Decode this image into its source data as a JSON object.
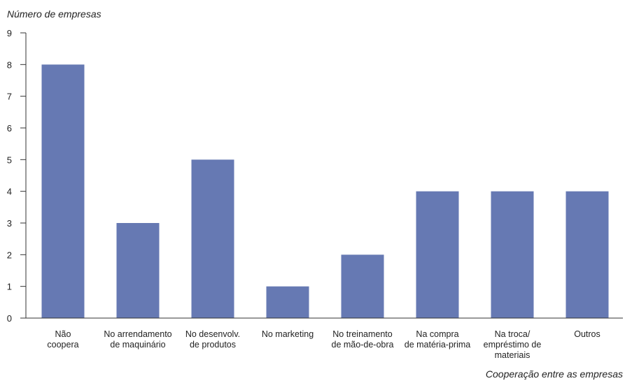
{
  "chart_data": {
    "type": "bar",
    "ylabel": "Número de empresas",
    "xlabel": "Cooperação entre as empresas",
    "ylim": [
      0,
      9
    ],
    "yticks": [
      0,
      1,
      2,
      3,
      4,
      5,
      6,
      7,
      8,
      9
    ],
    "grid": false,
    "categories": [
      [
        "Não",
        "coopera"
      ],
      [
        "No arrendamento",
        "de maquinário"
      ],
      [
        "No desenvolv.",
        "de produtos"
      ],
      [
        "No marketing"
      ],
      [
        "No treinamento",
        "de mão-de-obra"
      ],
      [
        "Na compra",
        "de matéria-prima"
      ],
      [
        "Na troca/",
        "empréstimo de",
        "materiais"
      ],
      [
        "Outros"
      ]
    ],
    "values": [
      8,
      3,
      5,
      1,
      2,
      4,
      4,
      4
    ],
    "bar_color": "#6679b3"
  }
}
